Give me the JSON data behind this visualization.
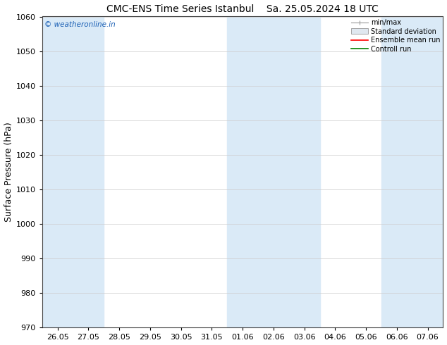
{
  "title": "CMC-ENS Time Series Istanbul",
  "title2": "Sa. 25.05.2024 18 UTC",
  "ylabel": "Surface Pressure (hPa)",
  "ylim": [
    970,
    1060
  ],
  "yticks": [
    970,
    980,
    990,
    1000,
    1010,
    1020,
    1030,
    1040,
    1050,
    1060
  ],
  "xtick_labels": [
    "26.05",
    "27.05",
    "28.05",
    "29.05",
    "30.05",
    "31.05",
    "01.06",
    "02.06",
    "03.06",
    "04.06",
    "05.06",
    "06.06",
    "07.06"
  ],
  "weekend_shading_color": "#daeaf7",
  "background_color": "#ffffff",
  "watermark_text": "© weatheronline.in",
  "watermark_color": "#1a5fb4",
  "legend_labels": [
    "min/max",
    "Standard deviation",
    "Ensemble mean run",
    "Controll run"
  ],
  "legend_colors": [
    "#999999",
    "#cccccc",
    "#ff0000",
    "#008000"
  ],
  "grid_color": "#cccccc",
  "axis_color": "#444444",
  "font_size": 8,
  "title_font_size": 10,
  "shaded_days": [
    0,
    1,
    6,
    7,
    8,
    11,
    12
  ]
}
